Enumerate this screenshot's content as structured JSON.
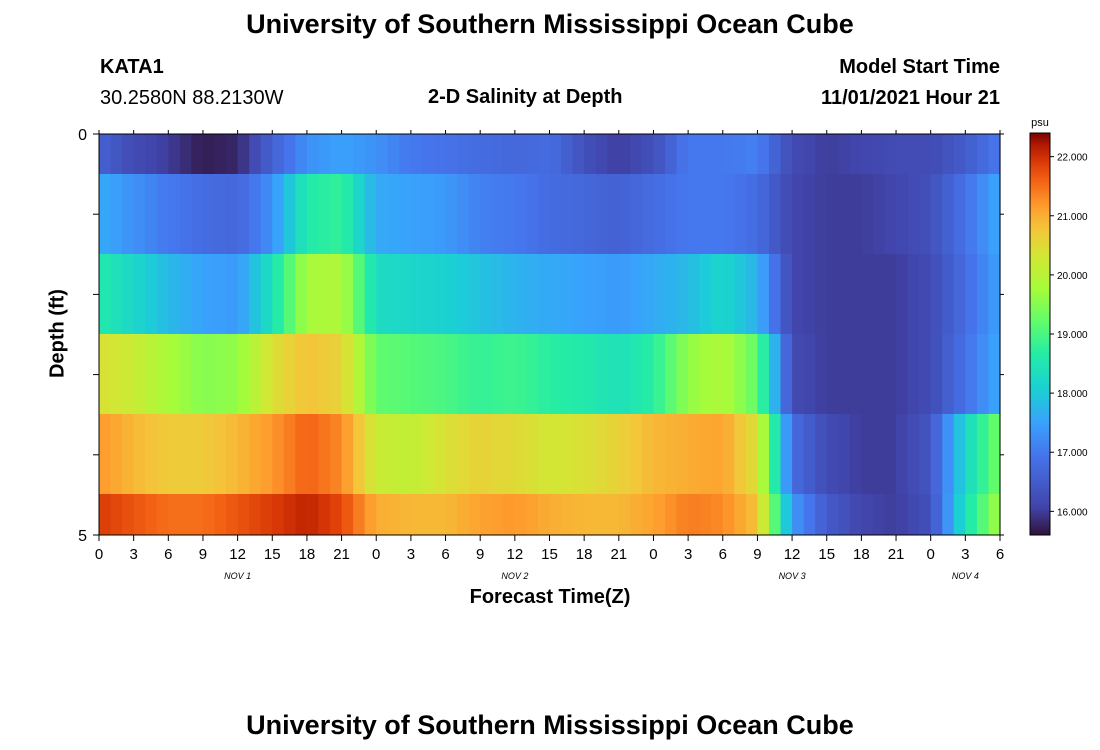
{
  "page": {
    "title_top": "University of Southern Mississippi Ocean Cube",
    "title_bottom": "University of Southern Mississippi Ocean Cube",
    "station_id": "KATA1",
    "station_coords": "30.2580N  88.2130W",
    "plot_title": "2-D Salinity at Depth",
    "model_label": "Model Start Time",
    "model_time": "11/01/2021 Hour 21"
  },
  "chart_data": {
    "type": "heatmap",
    "title": "2-D Salinity at Depth",
    "xlabel": "Forecast Time(Z)",
    "ylabel": "Depth (ft)",
    "colorbar_label": "psu",
    "colorbar_ticks": [
      "16.000",
      "17.000",
      "18.000",
      "19.000",
      "20.000",
      "21.000",
      "22.000"
    ],
    "colorbar_range": [
      15.6,
      22.4
    ],
    "x_tick_labels": [
      "0",
      "3",
      "6",
      "9",
      "12",
      "15",
      "18",
      "21",
      "0",
      "3",
      "6",
      "9",
      "12",
      "15",
      "18",
      "21",
      "0",
      "3",
      "6",
      "9",
      "12",
      "15",
      "18",
      "21",
      "0",
      "3",
      "6"
    ],
    "day_labels": [
      {
        "label": "NOV 1",
        "hour": 12
      },
      {
        "label": "NOV 2",
        "hour": 36
      },
      {
        "label": "NOV 3",
        "hour": 60
      },
      {
        "label": "NOV 4",
        "hour": 75
      }
    ],
    "x_range_hours": [
      0,
      78
    ],
    "y_tick_labels": [
      "0",
      "5"
    ],
    "y_range": [
      0,
      5
    ],
    "depth_rows": [
      0,
      1,
      2,
      3,
      4,
      5
    ],
    "hours": [
      0,
      3,
      6,
      9,
      12,
      15,
      18,
      21,
      24,
      27,
      30,
      33,
      36,
      39,
      42,
      45,
      48,
      51,
      54,
      57,
      60,
      63,
      66,
      69,
      72,
      75,
      78
    ],
    "salinity": [
      [
        16.6,
        16.2,
        16.0,
        15.7,
        15.8,
        16.6,
        17.3,
        17.5,
        17.3,
        17.0,
        16.9,
        16.8,
        16.7,
        16.8,
        16.3,
        16.0,
        16.3,
        17.0,
        17.0,
        17.1,
        16.2,
        16.0,
        16.1,
        16.2,
        16.2,
        16.5,
        17.0
      ],
      [
        17.6,
        17.3,
        17.0,
        16.8,
        16.7,
        17.3,
        18.6,
        18.8,
        17.6,
        17.5,
        17.4,
        17.1,
        17.0,
        16.8,
        16.7,
        16.6,
        16.8,
        17.0,
        17.0,
        16.8,
        16.1,
        16.0,
        16.0,
        16.1,
        16.3,
        16.9,
        17.6
      ],
      [
        18.6,
        18.2,
        17.8,
        17.5,
        17.4,
        18.4,
        19.8,
        19.9,
        18.3,
        18.2,
        18.1,
        17.9,
        17.7,
        17.6,
        17.5,
        17.4,
        17.6,
        17.8,
        18.2,
        17.7,
        16.1,
        16.0,
        16.0,
        16.0,
        16.2,
        16.8,
        17.5
      ],
      [
        20.4,
        20.2,
        19.8,
        19.5,
        19.6,
        20.4,
        20.8,
        20.6,
        19.2,
        19.1,
        19.0,
        18.8,
        18.9,
        18.7,
        18.6,
        18.4,
        18.7,
        19.6,
        19.9,
        19.2,
        16.2,
        16.0,
        16.0,
        16.0,
        16.2,
        16.9,
        17.6
      ],
      [
        21.2,
        20.9,
        20.7,
        20.7,
        20.9,
        21.2,
        21.6,
        21.3,
        20.2,
        20.1,
        20.4,
        20.6,
        20.5,
        20.3,
        20.4,
        20.6,
        20.9,
        21.0,
        21.1,
        20.4,
        16.8,
        16.2,
        16.0,
        16.0,
        16.4,
        18.2,
        19.4
      ],
      [
        21.9,
        21.7,
        21.5,
        21.5,
        21.7,
        21.9,
        22.1,
        21.8,
        21.0,
        20.9,
        20.9,
        21.1,
        21.2,
        21.0,
        20.9,
        20.9,
        21.1,
        21.4,
        21.3,
        20.8,
        17.4,
        16.5,
        16.1,
        16.0,
        16.3,
        18.4,
        19.8
      ]
    ]
  }
}
